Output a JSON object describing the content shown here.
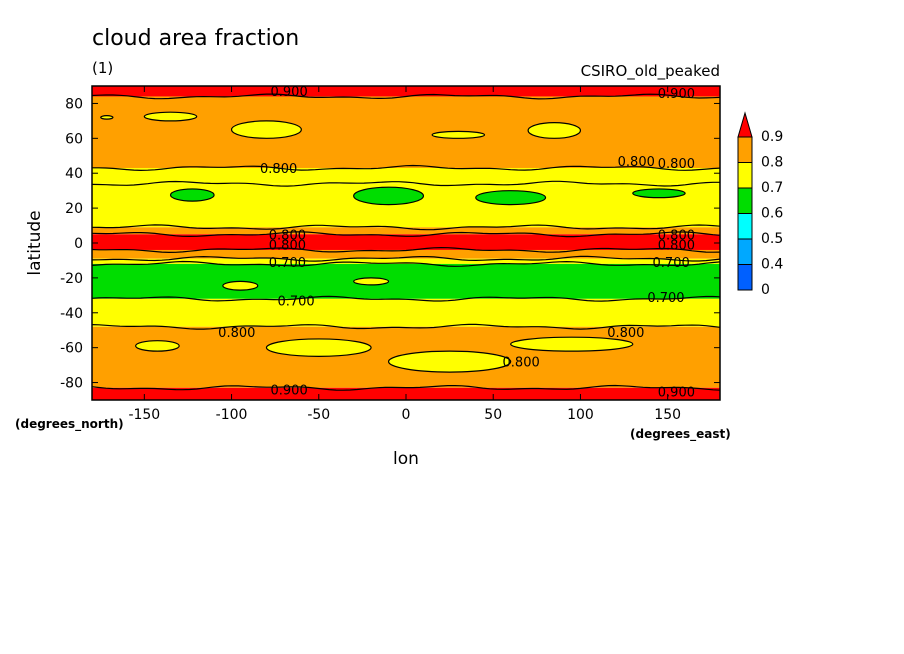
{
  "chart_data": {
    "type": "heatmap",
    "title": "cloud area fraction",
    "subtitle": "(1)",
    "source_label": "CSIRO_old_peaked",
    "xlabel": "lon",
    "ylabel": "latitude",
    "x_units": "(degrees_east)",
    "y_units": "(degrees_north)",
    "xlim": [
      -180,
      180
    ],
    "ylim": [
      -90,
      90
    ],
    "x_ticks": [
      -150,
      -100,
      -50,
      0,
      50,
      100,
      150
    ],
    "y_ticks": [
      -80,
      -60,
      -40,
      -20,
      0,
      20,
      40,
      60,
      80
    ],
    "levels": [
      {
        "label": "0",
        "color": "#0060ff"
      },
      {
        "label": "0.4",
        "color": "#00a8ff"
      },
      {
        "label": "0.5",
        "color": "#00ffff"
      },
      {
        "label": "0.6",
        "color": "#00dd00"
      },
      {
        "label": "0.7",
        "color": "#ffff00"
      },
      {
        "label": "0.8",
        "color": "#ffa000"
      },
      {
        "label": "0.9",
        "color": "#ff0000"
      }
    ],
    "lat_bands": [
      {
        "lat": [
          84,
          90
        ],
        "value": 0.9
      },
      {
        "lat": [
          43,
          84
        ],
        "value": 0.8
      },
      {
        "lat": [
          34,
          43
        ],
        "value": 0.75
      },
      {
        "lat": [
          9,
          34
        ],
        "value": 0.7
      },
      {
        "lat": [
          5,
          9
        ],
        "value": 0.8
      },
      {
        "lat": [
          -4,
          5
        ],
        "value": 0.9
      },
      {
        "lat": [
          -9,
          -4
        ],
        "value": 0.8
      },
      {
        "lat": [
          -12,
          -9
        ],
        "value": 0.75
      },
      {
        "lat": [
          -32,
          -12
        ],
        "value": 0.6
      },
      {
        "lat": [
          -48,
          -32
        ],
        "value": 0.7
      },
      {
        "lat": [
          -83,
          -48
        ],
        "value": 0.8
      },
      {
        "lat": [
          -90,
          -83
        ],
        "value": 0.9
      }
    ],
    "patches": [
      {
        "value": 0.7,
        "lon": [
          -100,
          -60
        ],
        "lat": [
          60,
          70
        ]
      },
      {
        "value": 0.7,
        "lon": [
          -175,
          -168
        ],
        "lat": [
          71,
          73
        ]
      },
      {
        "value": 0.7,
        "lon": [
          70,
          100
        ],
        "lat": [
          60,
          69
        ]
      },
      {
        "value": 0.7,
        "lon": [
          -150,
          -120
        ],
        "lat": [
          70,
          75
        ]
      },
      {
        "value": 0.7,
        "lon": [
          15,
          45
        ],
        "lat": [
          60,
          64
        ]
      },
      {
        "value": 0.7,
        "lon": [
          -80,
          -20
        ],
        "lat": [
          -65,
          -55
        ]
      },
      {
        "value": 0.7,
        "lon": [
          -10,
          60
        ],
        "lat": [
          -74,
          -62
        ]
      },
      {
        "value": 0.7,
        "lon": [
          60,
          130
        ],
        "lat": [
          -62,
          -54
        ]
      },
      {
        "value": 0.7,
        "lon": [
          -155,
          -130
        ],
        "lat": [
          -62,
          -56
        ]
      },
      {
        "value": 0.6,
        "lon": [
          -135,
          -110
        ],
        "lat": [
          24,
          31
        ]
      },
      {
        "value": 0.6,
        "lon": [
          -30,
          10
        ],
        "lat": [
          22,
          32
        ]
      },
      {
        "value": 0.6,
        "lon": [
          40,
          80
        ],
        "lat": [
          22,
          30
        ]
      },
      {
        "value": 0.6,
        "lon": [
          130,
          160
        ],
        "lat": [
          26,
          31
        ]
      },
      {
        "value": 0.7,
        "lon": [
          -105,
          -85
        ],
        "lat": [
          -27,
          -22
        ]
      },
      {
        "value": 0.7,
        "lon": [
          -30,
          -10
        ],
        "lat": [
          -24,
          -20
        ]
      }
    ],
    "contour_labels": [
      {
        "text": "0.900",
        "lon": -67,
        "lat": 87
      },
      {
        "text": "0.900",
        "lon": 155,
        "lat": 86
      },
      {
        "text": "0.800",
        "lon": -73,
        "lat": 43
      },
      {
        "text": "0.800",
        "lon": 132,
        "lat": 47
      },
      {
        "text": "0.800",
        "lon": 155,
        "lat": 46
      },
      {
        "text": "0.800",
        "lon": -68,
        "lat": 5
      },
      {
        "text": "0.800",
        "lon": 155,
        "lat": 5
      },
      {
        "text": "0.800",
        "lon": -68,
        "lat": -1
      },
      {
        "text": "0.800",
        "lon": 155,
        "lat": -1
      },
      {
        "text": "0.700",
        "lon": -68,
        "lat": -11
      },
      {
        "text": "0.700",
        "lon": 152,
        "lat": -11
      },
      {
        "text": "0.700",
        "lon": -63,
        "lat": -33
      },
      {
        "text": "0.700",
        "lon": 149,
        "lat": -31
      },
      {
        "text": "0.800",
        "lon": -97,
        "lat": -51
      },
      {
        "text": "0.800",
        "lon": 126,
        "lat": -51
      },
      {
        "text": "0.800",
        "lon": 66,
        "lat": -68
      },
      {
        "text": "0.900",
        "lon": -67,
        "lat": -84
      },
      {
        "text": "0.900",
        "lon": 155,
        "lat": -85
      }
    ]
  }
}
